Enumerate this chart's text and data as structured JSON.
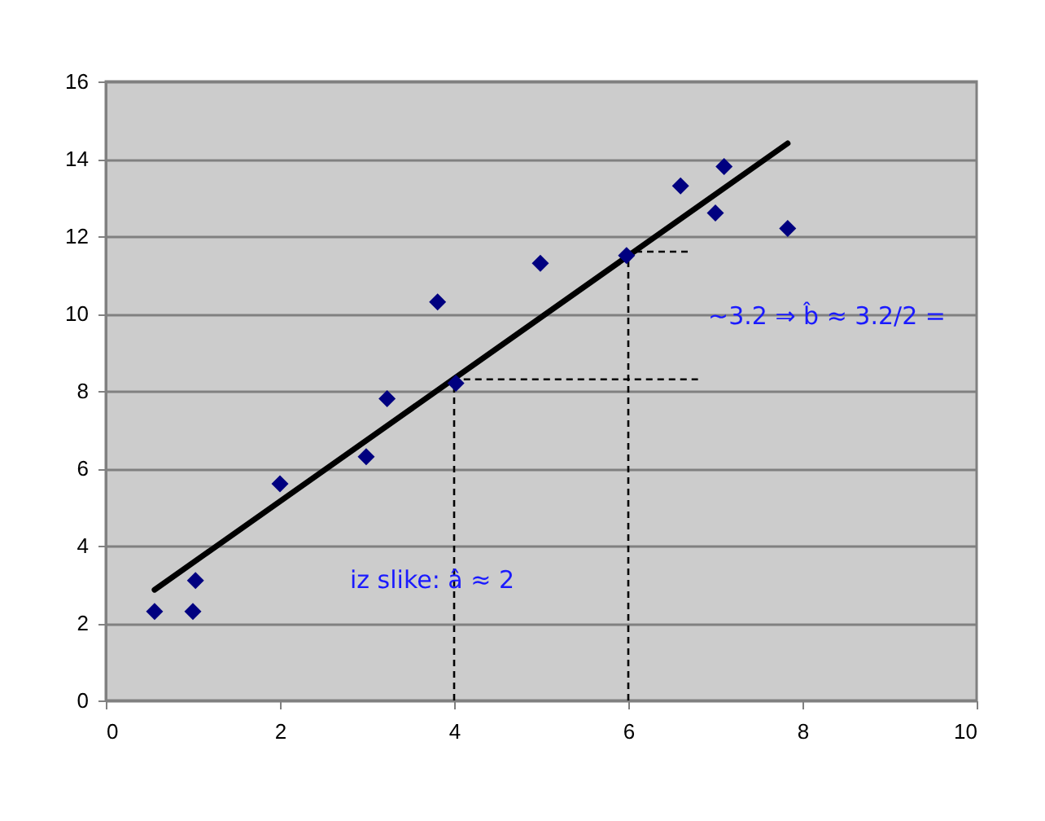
{
  "chart_data": {
    "type": "scatter",
    "xlim": [
      0,
      10
    ],
    "xticks": [
      0,
      2,
      4,
      6,
      8,
      10
    ],
    "ylim": [
      0,
      16
    ],
    "yticks": [
      0,
      2,
      4,
      6,
      8,
      10,
      12,
      14,
      16
    ],
    "grid": "y",
    "series": [
      {
        "type": "scatter",
        "marker": "diamond",
        "color": "#000080",
        "x": [
          0.56,
          1.0,
          1.03,
          2.0,
          2.99,
          3.23,
          3.81,
          4.02,
          4.99,
          5.98,
          6.6,
          7.0,
          7.1,
          7.83
        ],
        "values": [
          2.3,
          2.3,
          3.1,
          5.6,
          6.3,
          7.8,
          10.3,
          8.2,
          11.3,
          11.5,
          13.3,
          12.6,
          13.8,
          12.2
        ]
      },
      {
        "type": "line",
        "line_style": "solid",
        "marker": "none",
        "color": "#000000",
        "x": [
          0.56,
          7.83
        ],
        "values": [
          2.86,
          14.4
        ]
      },
      {
        "type": "line",
        "line_style": "dashed",
        "marker": "none",
        "color": "#000000",
        "x": [
          4,
          4,
          6.8
        ],
        "values": [
          0,
          8.3,
          8.3
        ]
      },
      {
        "type": "line",
        "line_style": "dashed",
        "marker": "none",
        "color": "#000000",
        "x": [
          6,
          6,
          6.7
        ],
        "values": [
          0,
          11.6,
          11.6
        ]
      }
    ],
    "annotations": [
      "~3.2 ⇒ b̂ ≈ 3.2/2 =",
      "iz slike: â ≈ 2"
    ]
  }
}
